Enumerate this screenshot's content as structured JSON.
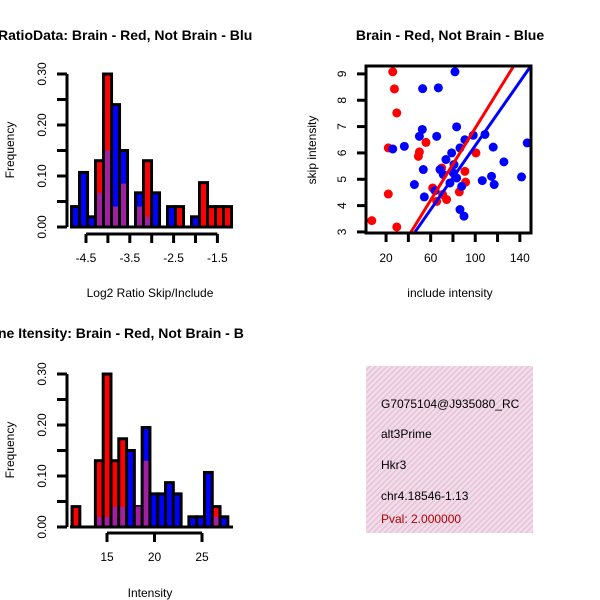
{
  "colors": {
    "red": "#ff0000",
    "blue": "#0000ff",
    "overlap": "#a020a0",
    "info_bg": "#f8d8f0",
    "pval": "#b00000"
  },
  "chart_data": [
    {
      "type": "bar",
      "title": "RatioData: Brain - Red, Not Brain - Blu",
      "xlabel": "Log2 Ratio Skip/Include",
      "ylabel": "Frequency",
      "ylim": [
        0,
        0.3
      ],
      "yticks": [
        "0.00",
        "0.10",
        "0.20",
        "0.30"
      ],
      "xticks": [
        "-4.5",
        "-3.5",
        "-2.5",
        "-1.5"
      ],
      "bin_start": -4.83,
      "bin_width": 0.1826,
      "series": [
        {
          "name": "Brain",
          "color": "red",
          "values": [
            0,
            0,
            0,
            0.13,
            0.3,
            0.04,
            0.085,
            0,
            0.04,
            0.13,
            0,
            0,
            0,
            0.04,
            0,
            0,
            0.087,
            0.04,
            0.04,
            0.04
          ]
        },
        {
          "name": "Not Brain",
          "color": "blue",
          "values": [
            0.04,
            0.107,
            0.02,
            0.067,
            0.15,
            0.24,
            0.15,
            0,
            0.067,
            0.02,
            0.067,
            0,
            0.04,
            0,
            0,
            0.02,
            0,
            0,
            0,
            0
          ]
        }
      ]
    },
    {
      "type": "scatter",
      "title": "Brain - Red, Not Brain - Blue",
      "xlabel": "include intensity",
      "ylabel": "skip intensity",
      "xlim": [
        2,
        150
      ],
      "ylim": [
        2.96,
        9.3
      ],
      "xticks": [
        "20",
        "60",
        "100",
        "140"
      ],
      "yticks": [
        "3",
        "4",
        "5",
        "6",
        "7",
        "8",
        "9"
      ],
      "series": [
        {
          "name": "Brain",
          "color": "red",
          "points": [
            [
              26,
              9.08
            ],
            [
              27.5,
              8.43
            ],
            [
              29.6,
              7.52
            ],
            [
              22,
              6.19
            ],
            [
              55.8,
              6.4
            ],
            [
              49.9,
              6.04
            ],
            [
              49,
              5.87
            ],
            [
              22,
              4.44
            ],
            [
              7.2,
              3.43
            ],
            [
              29.6,
              3.19
            ],
            [
              61.8,
              4.67
            ],
            [
              70.7,
              4.42
            ],
            [
              74.3,
              4.23
            ],
            [
              69.9,
              5.43
            ],
            [
              90.7,
              5.3
            ],
            [
              91.3,
              4.89
            ],
            [
              85.7,
              4.52
            ],
            [
              100.6,
              6.0
            ],
            [
              65.4,
              4.16
            ]
          ],
          "fit_line": [
            [
              42.4,
              3
            ],
            [
              134.9,
              9.33
            ]
          ]
        },
        {
          "name": "Not Brain",
          "color": "blue",
          "points": [
            [
              81.8,
              9.08
            ],
            [
              52.8,
              8.44
            ],
            [
              66.9,
              8.47
            ],
            [
              83.3,
              6.99
            ],
            [
              52.5,
              6.89
            ],
            [
              49.9,
              6.63
            ],
            [
              65.4,
              6.63
            ],
            [
              36.4,
              6.25
            ],
            [
              26,
              6.15
            ],
            [
              53.4,
              5.37
            ],
            [
              45.4,
              4.8
            ],
            [
              54.3,
              4.33
            ],
            [
              68.4,
              5.37
            ],
            [
              73.7,
              5.75
            ],
            [
              78.8,
              6.0
            ],
            [
              86.3,
              6.19
            ],
            [
              90.7,
              6.5
            ],
            [
              98.2,
              6.67
            ],
            [
              108.7,
              6.7
            ],
            [
              116.1,
              6.22
            ],
            [
              125.7,
              5.66
            ],
            [
              114.6,
              5.11
            ],
            [
              117,
              4.8
            ],
            [
              106.3,
              4.95
            ],
            [
              141.5,
              5.09
            ],
            [
              146.6,
              6.38
            ],
            [
              86.3,
              3.85
            ],
            [
              89.9,
              3.6
            ],
            [
              63.9,
              4.57
            ],
            [
              71.3,
              5.18
            ],
            [
              80.3,
              5.24
            ],
            [
              83.3,
              5.05
            ],
            [
              77.3,
              4.86
            ],
            [
              87.8,
              4.73
            ],
            [
              80.9,
              5.56
            ]
          ],
          "fit_line": [
            [
              46,
              3
            ],
            [
              149,
              9.25
            ]
          ]
        }
      ]
    },
    {
      "type": "bar",
      "title": "ne Itensity: Brain - Red, Not Brain - B",
      "xlabel": "Intensity",
      "ylabel": "Frequency",
      "ylim": [
        0,
        0.3
      ],
      "yticks": [
        "0.00",
        "0.10",
        "0.20",
        "0.30"
      ],
      "xticks": [
        "15",
        "20",
        "25"
      ],
      "bin_start": 11.32,
      "bin_width": 0.82,
      "series": [
        {
          "name": "Brain",
          "color": "red",
          "values": [
            0.04,
            0,
            0,
            0.13,
            0.3,
            0.13,
            0.173,
            0,
            0.04,
            0.13,
            0,
            0,
            0,
            0,
            0,
            0,
            0,
            0,
            0.04,
            0
          ]
        },
        {
          "name": "Not Brain",
          "color": "blue",
          "values": [
            0,
            0,
            0,
            0.02,
            0.02,
            0.04,
            0.04,
            0.15,
            0.04,
            0.195,
            0.065,
            0.065,
            0.087,
            0.065,
            0,
            0.02,
            0.02,
            0.107,
            0.02,
            0.02
          ]
        }
      ]
    }
  ],
  "info": {
    "id": "G7075104@J935080_RC",
    "event_type": "alt3Prime",
    "gene": "Hkr3",
    "location": "chr4.18546-1.13",
    "pval": "Pval: 2.000000"
  }
}
